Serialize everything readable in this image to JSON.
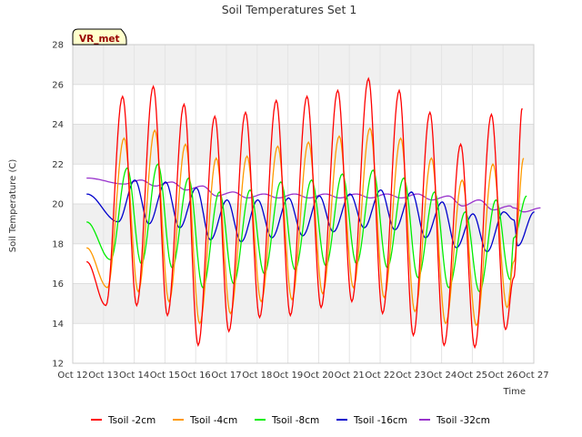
{
  "chart_data": {
    "type": "line",
    "title": "Soil Temperatures Set 1",
    "xlabel": "Time",
    "ylabel": "Soil Temperature (C)",
    "badge": "VR_met",
    "ylim": [
      12,
      28
    ],
    "yticks": [
      12,
      14,
      16,
      18,
      20,
      22,
      24,
      26,
      28
    ],
    "xlim": [
      12,
      27
    ],
    "xticks": [
      12,
      13,
      14,
      15,
      16,
      17,
      18,
      19,
      20,
      21,
      22,
      23,
      24,
      25,
      26,
      27
    ],
    "xtick_labels": [
      "Oct 12",
      "Oct 13",
      "Oct 14",
      "Oct 15",
      "Oct 16",
      "Oct 17",
      "Oct 18",
      "Oct 19",
      "Oct 20",
      "Oct 21",
      "Oct 22",
      "Oct 23",
      "Oct 24",
      "Oct 25",
      "Oct 26",
      "Oct 27"
    ],
    "grid": true,
    "legend_position": "bottom",
    "days": [
      13,
      14,
      15,
      16,
      17,
      18,
      19,
      20,
      21,
      22,
      23,
      24,
      25,
      26
    ],
    "series": [
      {
        "name": "Tsoil -2cm",
        "color": "#ff0000",
        "lag": 0.0,
        "start": 17.1,
        "end": 16.3,
        "peaks": [
          25.4,
          25.9,
          25.0,
          24.4,
          24.6,
          25.2,
          25.4,
          25.7,
          26.3,
          25.7,
          24.6,
          23.0,
          24.5,
          24.8
        ],
        "troughs": [
          14.9,
          14.9,
          14.4,
          12.9,
          13.6,
          14.3,
          14.4,
          14.8,
          15.1,
          14.5,
          13.4,
          12.9,
          12.8,
          13.7
        ]
      },
      {
        "name": "Tsoil -4cm",
        "color": "#ff9900",
        "lag": 0.05,
        "start": 17.8,
        "end": 17.1,
        "peaks": [
          23.3,
          23.7,
          23.0,
          22.3,
          22.4,
          22.9,
          23.1,
          23.4,
          23.8,
          23.3,
          22.3,
          21.2,
          22.0,
          22.3
        ],
        "troughs": [
          15.8,
          15.6,
          15.1,
          14.0,
          14.5,
          15.1,
          15.2,
          15.5,
          15.8,
          15.3,
          14.6,
          14.0,
          13.9,
          14.8
        ]
      },
      {
        "name": "Tsoil -8cm",
        "color": "#00ee00",
        "lag": 0.15,
        "start": 19.1,
        "end": 18.3,
        "peaks": [
          21.8,
          22.0,
          21.3,
          20.6,
          20.7,
          21.1,
          21.2,
          21.5,
          21.7,
          21.3,
          20.6,
          19.6,
          20.2,
          20.4
        ],
        "troughs": [
          17.2,
          17.0,
          16.8,
          15.8,
          16.0,
          16.5,
          16.7,
          16.9,
          17.0,
          16.8,
          16.3,
          15.8,
          15.6,
          16.2
        ]
      },
      {
        "name": "Tsoil -16cm",
        "color": "#0000cc",
        "lag": 0.4,
        "start": 20.5,
        "end": 19.2,
        "peaks": [
          21.2,
          21.1,
          20.8,
          20.2,
          20.2,
          20.3,
          20.4,
          20.5,
          20.7,
          20.6,
          20.1,
          19.5,
          19.6,
          19.6
        ],
        "troughs": [
          19.1,
          19.0,
          18.8,
          18.2,
          18.1,
          18.3,
          18.4,
          18.6,
          18.8,
          18.7,
          18.3,
          17.8,
          17.6,
          17.9
        ]
      },
      {
        "name": "Tsoil -32cm",
        "color": "#9933cc",
        "lag": 0.6,
        "start": 21.3,
        "end": 19.8,
        "peaks": [
          21.2,
          21.1,
          20.9,
          20.6,
          20.5,
          20.5,
          20.5,
          20.5,
          20.5,
          20.5,
          20.4,
          20.2,
          19.9,
          19.8
        ],
        "troughs": [
          21.0,
          20.9,
          20.7,
          20.4,
          20.3,
          20.3,
          20.3,
          20.3,
          20.3,
          20.3,
          20.2,
          19.9,
          19.7,
          19.6
        ]
      }
    ]
  }
}
